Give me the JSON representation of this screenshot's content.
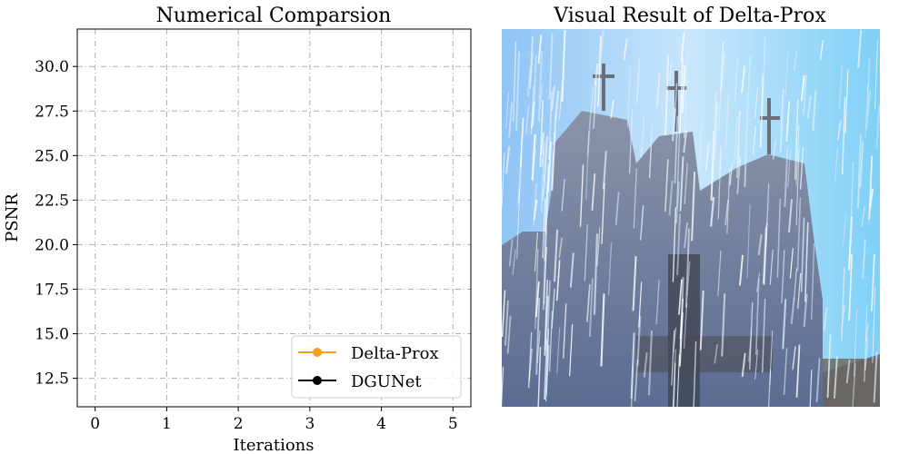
{
  "chart_data": {
    "type": "line",
    "title": "Numerical Comparsion",
    "xlabel": "Iterations",
    "ylabel": "PSNR",
    "xlim": [
      -0.25,
      5.25
    ],
    "ylim": [
      10.9,
      32.1
    ],
    "x_ticks": [
      "0",
      "1",
      "2",
      "3",
      "4",
      "5"
    ],
    "y_ticks": [
      "12.5",
      "15.0",
      "17.5",
      "20.0",
      "22.5",
      "25.0",
      "27.5",
      "30.0"
    ],
    "grid": true,
    "legend_position": "lower-right",
    "series": [
      {
        "name": "Delta-Prox",
        "color": "#f5a11a",
        "marker": "circle",
        "x": [],
        "y": []
      },
      {
        "name": "DGUNet",
        "color": "#000000",
        "marker": "circle",
        "x": [],
        "y": []
      }
    ]
  },
  "image_panel": {
    "title": "Visual Result of Delta-Prox",
    "description_icon": "rainy-church-photo-icon"
  }
}
